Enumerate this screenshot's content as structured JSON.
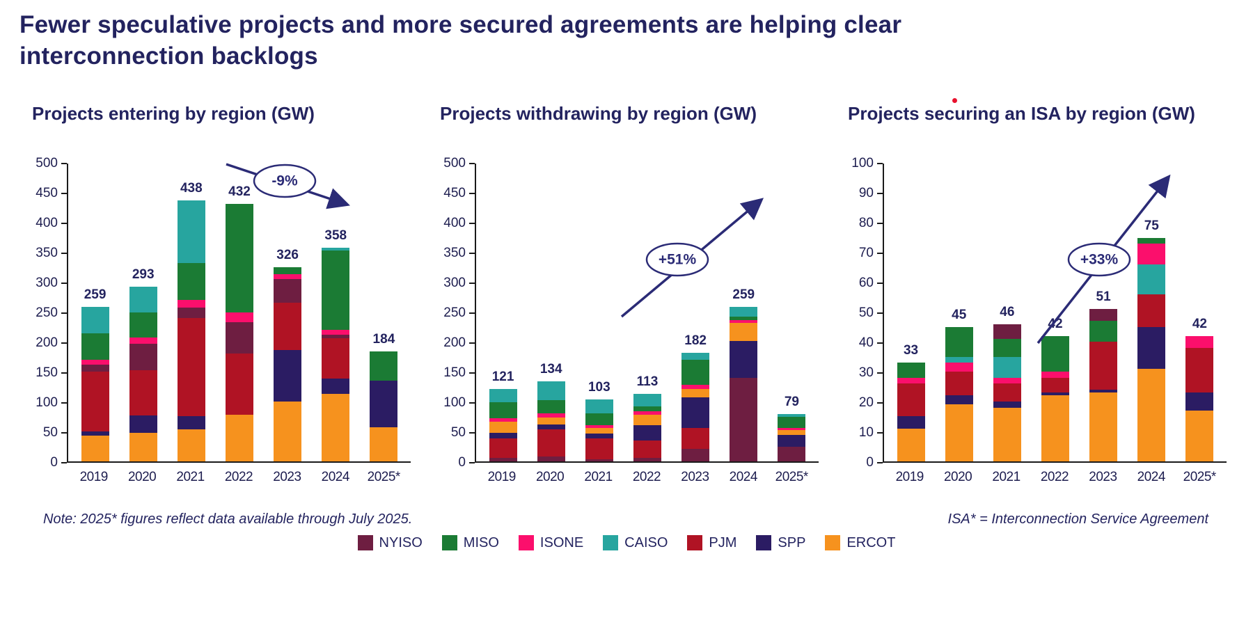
{
  "page": {
    "title": "Fewer speculative projects and more secured agreements are helping clear interconnection backlogs",
    "note": "Note: 2025* figures reflect data available through July 2025.",
    "isa_note": "ISA* = Interconnection Service Agreement"
  },
  "colors": {
    "NYISO": "#6e1e41",
    "MISO": "#1b7b34",
    "ISONE": "#fb0f6c",
    "CAISO": "#27a59f",
    "PJM": "#b01324",
    "SPP": "#2b1c63",
    "ERCOT": "#f6921e",
    "accent": "#2b2b76",
    "title_navy": "#23235f"
  },
  "legend": [
    "NYISO",
    "MISO",
    "ISONE",
    "CAISO",
    "PJM",
    "SPP",
    "ERCOT"
  ],
  "chart_data": [
    {
      "type": "bar",
      "stacked": true,
      "title": "Projects entering by region (GW)",
      "categories": [
        "2019",
        "2020",
        "2021",
        "2022",
        "2023",
        "2024",
        "2025*"
      ],
      "totals": [
        259,
        293,
        438,
        432,
        326,
        358,
        184
      ],
      "ylim": [
        0,
        500
      ],
      "ytick": 50,
      "annotation": {
        "label": "-9%",
        "direction": "down-right"
      },
      "segment_order": "bottom-to-top",
      "bars": [
        [
          [
            "ERCOT",
            43
          ],
          [
            "SPP",
            7
          ],
          [
            "PJM",
            100
          ],
          [
            "NYISO",
            12
          ],
          [
            "ISONE",
            8
          ],
          [
            "MISO",
            45
          ],
          [
            "CAISO",
            44
          ]
        ],
        [
          [
            "ERCOT",
            47
          ],
          [
            "SPP",
            30
          ],
          [
            "PJM",
            75
          ],
          [
            "NYISO",
            45
          ],
          [
            "ISONE",
            10
          ],
          [
            "MISO",
            42
          ],
          [
            "CAISO",
            44
          ]
        ],
        [
          [
            "ERCOT",
            53
          ],
          [
            "SPP",
            22
          ],
          [
            "PJM",
            165
          ],
          [
            "NYISO",
            18
          ],
          [
            "ISONE",
            12
          ],
          [
            "MISO",
            62
          ],
          [
            "CAISO",
            106
          ]
        ],
        [
          [
            "ERCOT",
            78
          ],
          [
            "PJM",
            103
          ],
          [
            "NYISO",
            52
          ],
          [
            "ISONE",
            16
          ],
          [
            "MISO",
            183
          ]
        ],
        [
          [
            "ERCOT",
            100
          ],
          [
            "SPP",
            86
          ],
          [
            "PJM",
            80
          ],
          [
            "NYISO",
            40
          ],
          [
            "ISONE",
            8
          ],
          [
            "MISO",
            12
          ]
        ],
        [
          [
            "ERCOT",
            113
          ],
          [
            "SPP",
            25
          ],
          [
            "PJM",
            68
          ],
          [
            "NYISO",
            6
          ],
          [
            "ISONE",
            8
          ],
          [
            "MISO",
            133
          ],
          [
            "CAISO",
            5
          ]
        ],
        [
          [
            "ERCOT",
            57
          ],
          [
            "SPP",
            78
          ],
          [
            "MISO",
            49
          ]
        ]
      ]
    },
    {
      "type": "bar",
      "stacked": true,
      "title": "Projects withdrawing by region (GW)",
      "categories": [
        "2019",
        "2020",
        "2021",
        "2022",
        "2023",
        "2024",
        "2025*"
      ],
      "totals": [
        121,
        134,
        103,
        113,
        182,
        259,
        79
      ],
      "ylim": [
        0,
        500
      ],
      "ytick": 50,
      "annotation": {
        "label": "+51%",
        "direction": "up-right"
      },
      "segment_order": "bottom-to-top",
      "bars": [
        [
          [
            "NYISO",
            5
          ],
          [
            "PJM",
            33
          ],
          [
            "SPP",
            10
          ],
          [
            "ERCOT",
            18
          ],
          [
            "ISONE",
            6
          ],
          [
            "MISO",
            27
          ],
          [
            "CAISO",
            22
          ]
        ],
        [
          [
            "NYISO",
            8
          ],
          [
            "PJM",
            45
          ],
          [
            "SPP",
            8
          ],
          [
            "ERCOT",
            12
          ],
          [
            "ISONE",
            7
          ],
          [
            "MISO",
            22
          ],
          [
            "CAISO",
            32
          ]
        ],
        [
          [
            "NYISO",
            3
          ],
          [
            "PJM",
            35
          ],
          [
            "SPP",
            8
          ],
          [
            "ERCOT",
            10
          ],
          [
            "ISONE",
            4
          ],
          [
            "MISO",
            20
          ],
          [
            "CAISO",
            23
          ]
        ],
        [
          [
            "NYISO",
            5
          ],
          [
            "PJM",
            30
          ],
          [
            "SPP",
            25
          ],
          [
            "ERCOT",
            18
          ],
          [
            "ISONE",
            6
          ],
          [
            "MISO",
            8
          ],
          [
            "CAISO",
            21
          ]
        ],
        [
          [
            "NYISO",
            20
          ],
          [
            "PJM",
            36
          ],
          [
            "SPP",
            51
          ],
          [
            "ERCOT",
            14
          ],
          [
            "ISONE",
            7
          ],
          [
            "MISO",
            42
          ],
          [
            "CAISO",
            12
          ]
        ],
        [
          [
            "NYISO",
            140
          ],
          [
            "SPP",
            62
          ],
          [
            "ERCOT",
            30
          ],
          [
            "ISONE",
            5
          ],
          [
            "MISO",
            5
          ],
          [
            "CAISO",
            17
          ]
        ],
        [
          [
            "NYISO",
            24
          ],
          [
            "SPP",
            20
          ],
          [
            "ERCOT",
            8
          ],
          [
            "ISONE",
            4
          ],
          [
            "MISO",
            18
          ],
          [
            "CAISO",
            5
          ]
        ]
      ]
    },
    {
      "type": "bar",
      "stacked": true,
      "title": "Projects securing an ISA by region (GW)",
      "categories": [
        "2019",
        "2020",
        "2021",
        "2022",
        "2023",
        "2024",
        "2025*"
      ],
      "totals": [
        33,
        45,
        46,
        42,
        51,
        75,
        42
      ],
      "ylim": [
        0,
        100
      ],
      "ytick": 10,
      "annotation": {
        "label": "+33%",
        "direction": "up-right"
      },
      "segment_order": "bottom-to-top",
      "bars": [
        [
          [
            "ERCOT",
            11
          ],
          [
            "SPP",
            4
          ],
          [
            "PJM",
            11
          ],
          [
            "ISONE",
            2
          ],
          [
            "MISO",
            5
          ]
        ],
        [
          [
            "ERCOT",
            19
          ],
          [
            "SPP",
            3
          ],
          [
            "PJM",
            8
          ],
          [
            "ISONE",
            3
          ],
          [
            "CAISO",
            2
          ],
          [
            "MISO",
            10
          ]
        ],
        [
          [
            "ERCOT",
            18
          ],
          [
            "SPP",
            2
          ],
          [
            "PJM",
            6
          ],
          [
            "ISONE",
            2
          ],
          [
            "CAISO",
            7
          ],
          [
            "MISO",
            6
          ],
          [
            "NYISO",
            5
          ]
        ],
        [
          [
            "ERCOT",
            22
          ],
          [
            "SPP",
            1
          ],
          [
            "PJM",
            5
          ],
          [
            "ISONE",
            2
          ],
          [
            "MISO",
            12
          ]
        ],
        [
          [
            "ERCOT",
            23
          ],
          [
            "SPP",
            1
          ],
          [
            "PJM",
            16
          ],
          [
            "MISO",
            7
          ],
          [
            "NYISO",
            4
          ]
        ],
        [
          [
            "ERCOT",
            31
          ],
          [
            "SPP",
            14
          ],
          [
            "PJM",
            11
          ],
          [
            "CAISO",
            10
          ],
          [
            "ISONE",
            7
          ],
          [
            "MISO",
            2
          ]
        ],
        [
          [
            "ERCOT",
            17
          ],
          [
            "SPP",
            6
          ],
          [
            "PJM",
            15
          ],
          [
            "ISONE",
            4
          ]
        ]
      ]
    }
  ]
}
